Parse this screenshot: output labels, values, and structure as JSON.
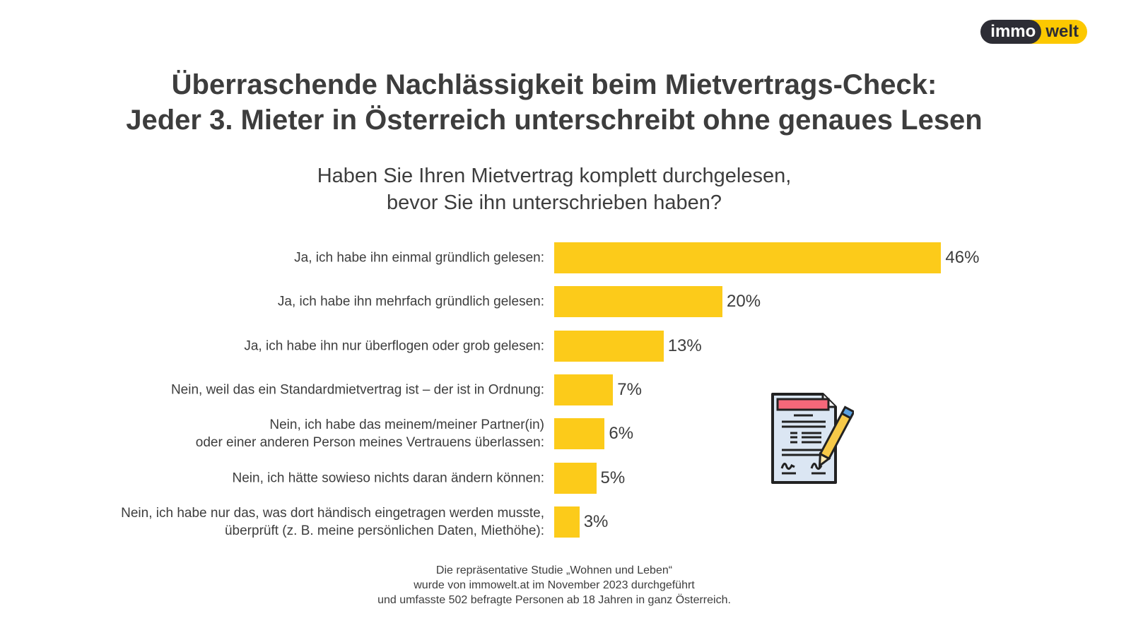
{
  "logo": {
    "part1": "immo",
    "part2": "welt"
  },
  "title": [
    "Überraschende Nachlässigkeit beim Mietvertrags-Check:",
    "Jeder 3. Mieter in Österreich unterschreibt ohne genaues Lesen"
  ],
  "chart_data": {
    "type": "bar",
    "orientation": "horizontal",
    "title": [
      "Haben Sie Ihren Mietvertrag komplett durchgelesen,",
      "bevor Sie ihn unterschrieben haben?"
    ],
    "unit": "%",
    "categories": [
      [
        "Ja, ich habe ihn einmal gründlich gelesen:"
      ],
      [
        "Ja, ich habe ihn mehrfach gründlich gelesen:"
      ],
      [
        "Ja, ich habe ihn nur überflogen oder grob gelesen:"
      ],
      [
        "Nein, weil das ein Standardmietvertrag ist – der ist in Ordnung:"
      ],
      [
        "Nein, ich habe das meinem/meiner Partner(in)",
        "oder einer anderen Person meines Vertrauens überlassen:"
      ],
      [
        "Nein, ich hätte sowieso nichts daran ändern können:"
      ],
      [
        "Nein, ich habe nur das, was dort händisch eingetragen werden musste,",
        "überprüft (z. B. meine persönlichen Daten, Miethöhe):"
      ]
    ],
    "values": [
      46,
      20,
      13,
      7,
      6,
      5,
      3
    ],
    "labels": [
      "46%",
      "20%",
      "13%",
      "7%",
      "6%",
      "5%",
      "3%"
    ],
    "bar_color": "#fccb1a"
  },
  "footer": [
    "Die repräsentative Studie „Wohnen und Leben“",
    "wurde von immowelt.at im November 2023 durchgeführt",
    "und umfasste 502 befragte Personen ab 18 Jahren in ganz Österreich."
  ]
}
